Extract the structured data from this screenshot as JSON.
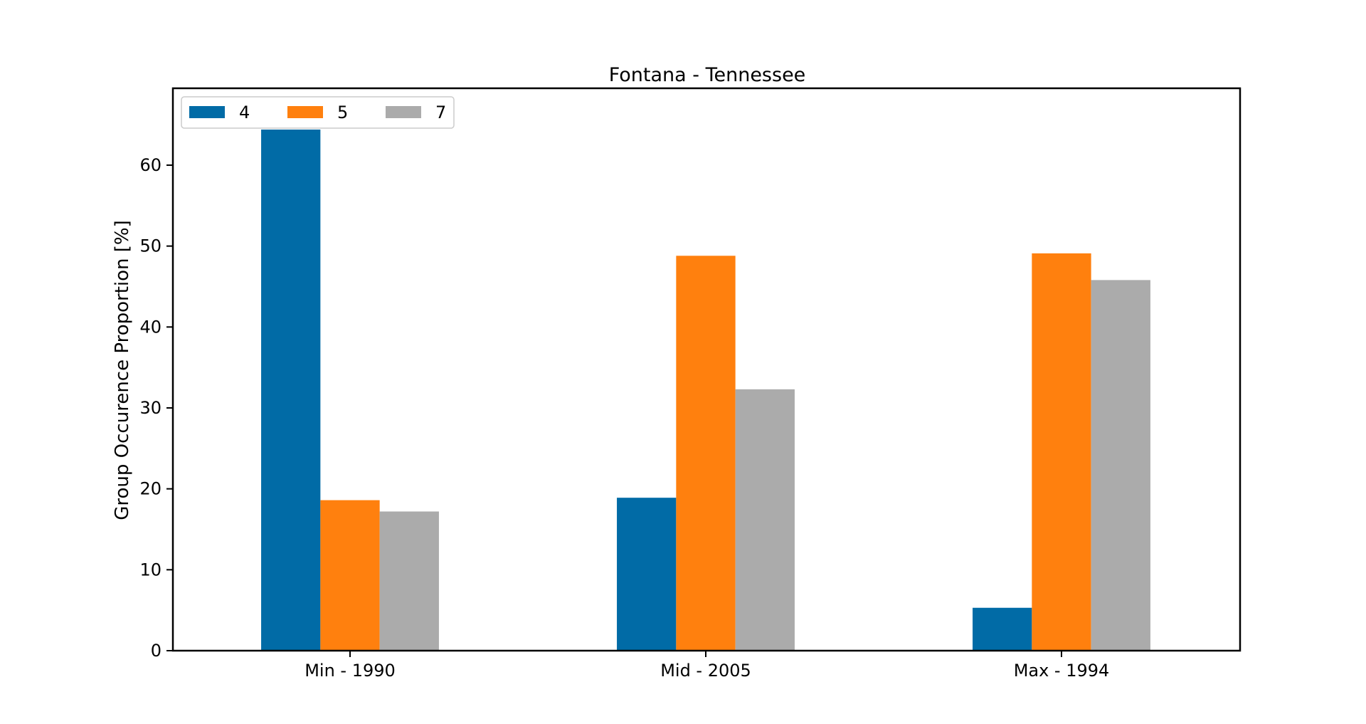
{
  "chart_data": {
    "type": "bar",
    "title": "Fontana - Tennessee",
    "xlabel": "",
    "ylabel": "Group Occurence Proportion [%]",
    "categories": [
      "Min - 1990",
      "Mid - 2005",
      "Max - 1994"
    ],
    "series": [
      {
        "name": "4",
        "color": "#016ba6",
        "values": [
          64.4,
          18.9,
          5.3
        ]
      },
      {
        "name": "5",
        "color": "#ff800e",
        "values": [
          18.6,
          48.8,
          49.1
        ]
      },
      {
        "name": "7",
        "color": "#ababab",
        "values": [
          17.2,
          32.3,
          45.8
        ]
      }
    ],
    "ylim": [
      0,
      69.5
    ],
    "yticks": [
      0,
      10,
      20,
      30,
      40,
      50,
      60
    ],
    "grid": false,
    "legend": {
      "placement": "top-left",
      "orientation": "horizontal"
    }
  }
}
